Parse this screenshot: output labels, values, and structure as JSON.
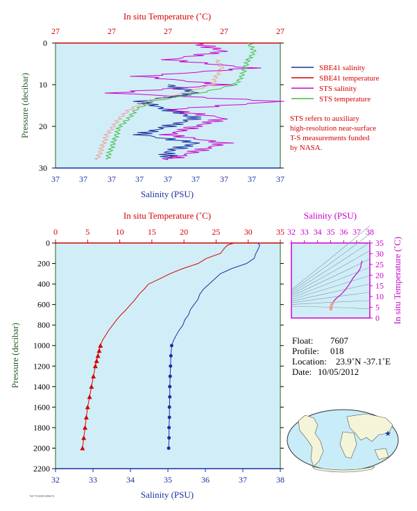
{
  "top_panel": {
    "title": "In situ Temperature (˚C)",
    "temp_ticks": [
      "27",
      "27",
      "27",
      "27",
      "27"
    ],
    "salinity_ticks": [
      "37",
      "37",
      "37",
      "37",
      "37",
      "37",
      "37",
      "37",
      "37"
    ],
    "pressure_ticks": [
      "0",
      "10",
      "20",
      "30"
    ],
    "ylabel": "Pressure (decibar)",
    "xlabel": "Salinity (PSU)",
    "legend": [
      {
        "label": "SBE41 salinity",
        "color": "#1a2fa0"
      },
      {
        "label": "SBE41 temperature",
        "color": "#d40000"
      },
      {
        "label": "STS salinity",
        "color": "#cc00cc"
      },
      {
        "label": "STS temperature",
        "color": "#44bb44"
      }
    ],
    "note": [
      "STS refers to auxiliary",
      "high-resolution near-surface",
      "T-S measurements funded",
      "by NASA."
    ]
  },
  "main_panel": {
    "title": "In situ Temperature (˚C)",
    "ylabel": "Pressure (decibar)",
    "xlabel": "Salinity (PSU)",
    "temp_ticks": [
      "0",
      "5",
      "10",
      "15",
      "20",
      "25",
      "30",
      "35"
    ],
    "salinity_ticks": [
      "32",
      "33",
      "34",
      "35",
      "36",
      "37",
      "38"
    ],
    "pressure_ticks": [
      "0",
      "200",
      "400",
      "600",
      "800",
      "1000",
      "1200",
      "1400",
      "1600",
      "1800",
      "2000",
      "2200"
    ]
  },
  "ts_panel": {
    "title": "Salinity (PSU)",
    "ylabel": "In situ Temperature (˚C)",
    "salinity_ticks": [
      "32",
      "33",
      "34",
      "35",
      "36",
      "37",
      "38"
    ],
    "temp_ticks": [
      "0",
      "5",
      "10",
      "15",
      "20",
      "25",
      "30",
      "35"
    ]
  },
  "info": {
    "float_label": "Float:",
    "float_value": "7607",
    "profile_label": "Profile:",
    "profile_value": "018",
    "location_label": "Location:",
    "location_value": "23.9˚N  -37.1˚E",
    "date_label": "Date:",
    "date_value": "10/05/2012"
  },
  "footer_text": "7607 PS2008 6086074",
  "colors": {
    "panel_bg": "#d1eef8",
    "temperature": "#d40000",
    "salinity": "#1a2fa0",
    "sts_salinity": "#cc00cc",
    "sts_temperature": "#44bb44",
    "sts_temp_light": "#f0a090",
    "axis_left": "#2a5a2a"
  },
  "chart_data": [
    {
      "type": "line",
      "title": "In situ Temperature (˚C)",
      "xlabel": "Salinity (PSU)",
      "ylabel": "Pressure (decibar)",
      "ylim": [
        0,
        30
      ],
      "series": [
        {
          "name": "SBE41 salinity",
          "pressure": [
            10,
            12,
            14,
            16,
            18,
            20,
            22,
            24,
            26,
            28
          ],
          "values": [
            37.04,
            37.05,
            37.03,
            37.04,
            37.05,
            37.04,
            37.03,
            37.05,
            37.04,
            37.04
          ]
        },
        {
          "name": "STS salinity",
          "pressure": [
            0,
            2,
            4,
            6,
            8,
            10,
            12,
            14,
            16,
            18,
            20,
            22,
            24,
            26,
            28
          ],
          "values": [
            37.05,
            37.06,
            37.04,
            37.07,
            37.03,
            37.06,
            37.02,
            37.08,
            37.04,
            37.06,
            37.05,
            37.04,
            37.06,
            37.05,
            37.04
          ]
        },
        {
          "name": "STS temperature",
          "pressure": [
            0,
            2,
            4,
            6,
            8,
            10,
            12,
            14,
            16,
            18,
            20,
            22,
            24,
            26,
            28
          ],
          "values": [
            27.3,
            27.32,
            27.3,
            27.29,
            27.28,
            27.26,
            27.15,
            27.0,
            26.95,
            26.93,
            26.9,
            26.89,
            26.88,
            26.87,
            26.86
          ]
        },
        {
          "name": "SBE41 temperature",
          "pressure": [
            4,
            6,
            8,
            10,
            12,
            14,
            16,
            18,
            20,
            22,
            24,
            26,
            28
          ],
          "values": [
            27.2,
            27.22,
            27.2,
            27.19,
            27.1,
            26.98,
            26.93,
            26.9,
            26.88,
            26.86,
            26.85,
            26.84,
            26.83
          ]
        }
      ]
    },
    {
      "type": "line",
      "title": "In situ Temperature (˚C)",
      "xlabel": "Salinity (PSU)",
      "ylabel": "Pressure (decibar)",
      "ylim": [
        0,
        2200
      ],
      "series": [
        {
          "name": "temperature",
          "pressure": [
            0,
            20,
            50,
            100,
            150,
            200,
            250,
            300,
            350,
            400,
            450,
            500,
            550,
            600,
            650,
            700,
            750,
            800,
            850,
            900,
            950,
            1000,
            1050,
            1100,
            1150,
            1200,
            1300,
            1400,
            1500,
            1600,
            1700,
            1800,
            1900,
            2000
          ],
          "values": [
            27.8,
            26.8,
            26.3,
            25.7,
            23.5,
            22.2,
            19.8,
            17.8,
            16.2,
            14.5,
            13.8,
            13.0,
            12.4,
            11.7,
            11.0,
            10.2,
            9.5,
            8.9,
            8.3,
            7.8,
            7.3,
            7.0,
            6.8,
            6.6,
            6.4,
            6.2,
            5.9,
            5.6,
            5.3,
            5.0,
            4.8,
            4.6,
            4.4,
            4.2
          ]
        },
        {
          "name": "salinity",
          "pressure": [
            0,
            20,
            50,
            100,
            150,
            200,
            250,
            300,
            350,
            400,
            450,
            500,
            550,
            600,
            650,
            700,
            750,
            800,
            850,
            900,
            950,
            1000,
            1100,
            1200,
            1300,
            1400,
            1500,
            1600,
            1700,
            1800,
            1900,
            2000
          ],
          "values": [
            37.4,
            37.45,
            37.42,
            37.35,
            37.3,
            37.1,
            36.7,
            36.4,
            36.25,
            36.1,
            35.95,
            35.85,
            35.8,
            35.7,
            35.6,
            35.55,
            35.45,
            35.4,
            35.3,
            35.22,
            35.15,
            35.1,
            35.08,
            35.07,
            35.06,
            35.05,
            35.05,
            35.04,
            35.04,
            35.03,
            35.03,
            35.02
          ]
        }
      ]
    },
    {
      "type": "line",
      "title": "Salinity (PSU)",
      "xlabel": "Salinity (PSU)",
      "ylabel": "In situ Temperature (˚C)",
      "xlim": [
        32,
        38
      ],
      "ylim": [
        0,
        35
      ],
      "series": [
        {
          "name": "T-S",
          "salinity": [
            35.02,
            35.03,
            35.05,
            35.08,
            35.15,
            35.3,
            35.5,
            35.8,
            36.1,
            36.4,
            36.7,
            37.1,
            37.3,
            37.35,
            37.42
          ],
          "temperature": [
            4.2,
            4.6,
            5.3,
            6.2,
            7.0,
            8.3,
            9.5,
            11.0,
            13.0,
            15.5,
            18.5,
            21.5,
            23.5,
            25.7,
            26.8
          ]
        }
      ]
    }
  ]
}
